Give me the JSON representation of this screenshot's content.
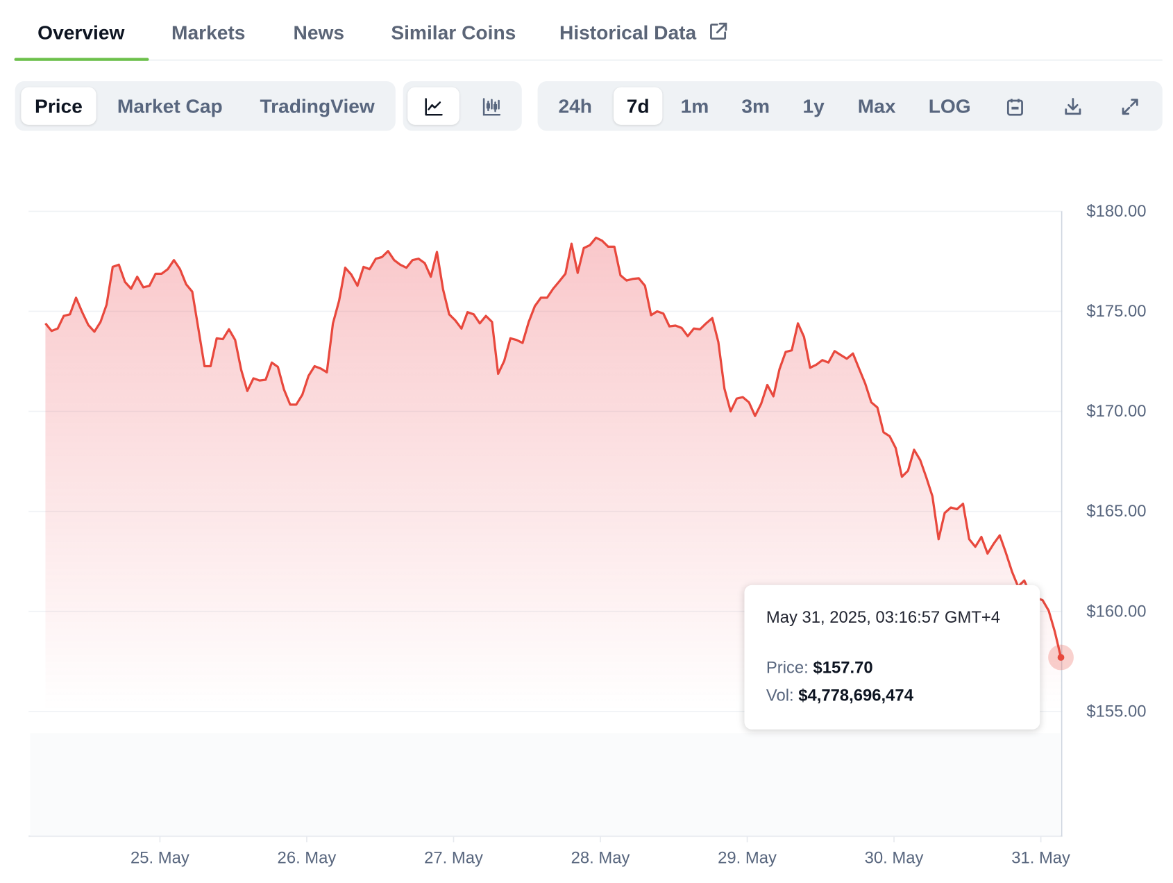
{
  "tabs": [
    {
      "label": "Overview",
      "active": true
    },
    {
      "label": "Markets"
    },
    {
      "label": "News"
    },
    {
      "label": "Similar Coins"
    },
    {
      "label": "Historical Data",
      "icon": "external-link-icon"
    }
  ],
  "toolbar": {
    "metrics": [
      {
        "label": "Price",
        "selected": true
      },
      {
        "label": "Market Cap"
      },
      {
        "label": "TradingView"
      }
    ],
    "chart_types": [
      {
        "icon": "line-chart-icon",
        "selected": true
      },
      {
        "icon": "candlestick-chart-icon"
      }
    ],
    "ranges": [
      {
        "label": "24h"
      },
      {
        "label": "7d",
        "selected": true
      },
      {
        "label": "1m"
      },
      {
        "label": "3m"
      },
      {
        "label": "1y"
      },
      {
        "label": "Max"
      },
      {
        "label": "LOG"
      }
    ],
    "actions": [
      {
        "icon": "calendar-icon"
      },
      {
        "icon": "download-icon"
      },
      {
        "icon": "expand-icon"
      }
    ]
  },
  "tooltip": {
    "datetime": "May 31, 2025, 03:16:57 GMT+4",
    "price_label": "Price:",
    "price": "$157.70",
    "vol_label": "Vol:",
    "vol": "$4,778,696,474"
  },
  "colors": {
    "line": "#e8483d",
    "accent": "#6cc04a",
    "grid": "#eff2f5"
  },
  "chart_data": {
    "type": "area",
    "ylim": [
      150.7,
      180
    ],
    "yticks": [
      "$180.00",
      "$175.00",
      "$170.00",
      "$165.00",
      "$160.00",
      "$155.00"
    ],
    "ytick_values": [
      180,
      175,
      170,
      165,
      160,
      155
    ],
    "xticks": [
      "25. May",
      "26. May",
      "27. May",
      "28. May",
      "29. May",
      "30. May",
      "31. May"
    ],
    "xtick_values": [
      "2025-05-25T00:00",
      "2025-05-26T00:00",
      "2025-05-27T00:00",
      "2025-05-28T00:00",
      "2025-05-29T00:00",
      "2025-05-30T00:00",
      "2025-05-31T00:00"
    ],
    "xlim": [
      "2025-05-24T04:00",
      "2025-05-31T03:17"
    ],
    "grid": true,
    "highlight": {
      "x": "2025-05-31T03:17",
      "y": 157.7
    },
    "x": [
      "2025-05-24T05:17",
      "2025-05-24T06:17",
      "2025-05-24T07:17",
      "2025-05-24T08:17",
      "2025-05-24T09:17",
      "2025-05-24T10:17",
      "2025-05-24T11:17",
      "2025-05-24T12:17",
      "2025-05-24T13:17",
      "2025-05-24T14:17",
      "2025-05-24T15:17",
      "2025-05-24T16:17",
      "2025-05-24T17:17",
      "2025-05-24T18:17",
      "2025-05-24T19:17",
      "2025-05-24T20:17",
      "2025-05-24T21:17",
      "2025-05-24T22:17",
      "2025-05-24T23:17",
      "2025-05-25T00:17",
      "2025-05-25T01:17",
      "2025-05-25T02:17",
      "2025-05-25T03:17",
      "2025-05-25T04:17",
      "2025-05-25T05:17",
      "2025-05-25T06:17",
      "2025-05-25T07:17",
      "2025-05-25T08:17",
      "2025-05-25T09:17",
      "2025-05-25T10:17",
      "2025-05-25T11:17",
      "2025-05-25T12:17",
      "2025-05-25T13:17",
      "2025-05-25T14:17",
      "2025-05-25T15:17",
      "2025-05-25T16:17",
      "2025-05-25T17:17",
      "2025-05-25T18:17",
      "2025-05-25T19:17",
      "2025-05-25T20:17",
      "2025-05-25T21:17",
      "2025-05-25T22:17",
      "2025-05-25T23:17",
      "2025-05-26T00:17",
      "2025-05-26T01:17",
      "2025-05-26T02:17",
      "2025-05-26T03:17",
      "2025-05-26T04:17",
      "2025-05-26T05:17",
      "2025-05-26T06:17",
      "2025-05-26T07:17",
      "2025-05-26T08:17",
      "2025-05-26T09:17",
      "2025-05-26T10:17",
      "2025-05-26T11:17",
      "2025-05-26T12:17",
      "2025-05-26T13:17",
      "2025-05-26T14:17",
      "2025-05-26T15:17",
      "2025-05-26T16:17",
      "2025-05-26T17:17",
      "2025-05-26T18:17",
      "2025-05-26T19:17",
      "2025-05-26T20:17",
      "2025-05-26T21:17",
      "2025-05-26T22:17",
      "2025-05-26T23:17",
      "2025-05-27T00:17",
      "2025-05-27T01:17",
      "2025-05-27T02:17",
      "2025-05-27T03:17",
      "2025-05-27T04:17",
      "2025-05-27T05:17",
      "2025-05-27T06:17",
      "2025-05-27T07:17",
      "2025-05-27T08:17",
      "2025-05-27T09:17",
      "2025-05-27T10:17",
      "2025-05-27T11:17",
      "2025-05-27T12:17",
      "2025-05-27T13:17",
      "2025-05-27T14:17",
      "2025-05-27T15:17",
      "2025-05-27T16:17",
      "2025-05-27T17:17",
      "2025-05-27T18:17",
      "2025-05-27T19:17",
      "2025-05-27T20:17",
      "2025-05-27T21:17",
      "2025-05-27T22:17",
      "2025-05-27T23:17",
      "2025-05-28T00:17",
      "2025-05-28T01:17",
      "2025-05-28T02:17",
      "2025-05-28T03:17",
      "2025-05-28T04:17",
      "2025-05-28T05:17",
      "2025-05-28T06:17",
      "2025-05-28T07:17",
      "2025-05-28T08:17",
      "2025-05-28T09:17",
      "2025-05-28T10:17",
      "2025-05-28T11:17",
      "2025-05-28T12:17",
      "2025-05-28T13:17",
      "2025-05-28T14:17",
      "2025-05-28T15:17",
      "2025-05-28T16:17",
      "2025-05-28T17:17",
      "2025-05-28T18:17",
      "2025-05-28T19:17",
      "2025-05-28T20:17",
      "2025-05-28T21:17",
      "2025-05-28T22:17",
      "2025-05-28T23:17",
      "2025-05-29T00:17",
      "2025-05-29T01:17",
      "2025-05-29T02:17",
      "2025-05-29T03:17",
      "2025-05-29T04:17",
      "2025-05-29T05:17",
      "2025-05-29T06:17",
      "2025-05-29T07:17",
      "2025-05-29T08:17",
      "2025-05-29T09:17",
      "2025-05-29T10:17",
      "2025-05-29T11:17",
      "2025-05-29T12:17",
      "2025-05-29T13:17",
      "2025-05-29T14:17",
      "2025-05-29T15:17",
      "2025-05-29T16:17",
      "2025-05-29T17:17",
      "2025-05-29T18:17",
      "2025-05-29T19:17",
      "2025-05-29T20:17",
      "2025-05-29T21:17",
      "2025-05-29T22:17",
      "2025-05-29T23:17",
      "2025-05-30T00:17",
      "2025-05-30T01:17",
      "2025-05-30T02:17",
      "2025-05-30T03:17",
      "2025-05-30T04:17",
      "2025-05-30T05:17",
      "2025-05-30T06:17",
      "2025-05-30T07:17",
      "2025-05-30T08:17",
      "2025-05-30T09:17",
      "2025-05-30T10:17",
      "2025-05-30T11:17",
      "2025-05-30T12:17",
      "2025-05-30T13:17",
      "2025-05-30T14:17",
      "2025-05-30T15:17",
      "2025-05-30T16:17",
      "2025-05-30T17:17",
      "2025-05-30T18:17",
      "2025-05-30T19:17",
      "2025-05-30T20:17",
      "2025-05-30T21:17",
      "2025-05-30T22:17",
      "2025-05-30T23:17",
      "2025-05-31T00:17",
      "2025-05-31T01:17",
      "2025-05-31T02:17",
      "2025-05-31T03:17"
    ],
    "y": [
      174.4,
      174.02,
      174.14,
      174.77,
      174.85,
      175.68,
      174.96,
      174.32,
      173.98,
      174.47,
      175.34,
      177.22,
      177.33,
      176.47,
      176.13,
      176.73,
      176.2,
      176.28,
      176.88,
      176.88,
      177.11,
      177.56,
      177.11,
      176.35,
      175.98,
      174.14,
      172.26,
      172.26,
      173.65,
      173.61,
      174.1,
      173.57,
      172.07,
      171.02,
      171.65,
      171.54,
      171.58,
      172.44,
      172.22,
      171.09,
      170.34,
      170.34,
      170.83,
      171.77,
      172.26,
      172.14,
      171.95,
      174.4,
      175.53,
      177.18,
      176.84,
      176.28,
      177.22,
      177.11,
      177.63,
      177.71,
      178.01,
      177.56,
      177.33,
      177.18,
      177.56,
      177.63,
      177.41,
      176.73,
      177.97,
      176.09,
      174.85,
      174.55,
      174.14,
      174.96,
      174.85,
      174.4,
      174.77,
      174.47,
      171.88,
      172.52,
      173.65,
      173.57,
      173.42,
      174.47,
      175.26,
      175.68,
      175.68,
      176.13,
      176.5,
      176.88,
      178.38,
      176.92,
      178.16,
      178.31,
      178.68,
      178.53,
      178.23,
      178.23,
      176.8,
      176.54,
      176.62,
      176.65,
      176.28,
      174.81,
      175.0,
      174.89,
      174.25,
      174.29,
      174.17,
      173.76,
      174.14,
      174.1,
      174.4,
      174.66,
      173.46,
      171.13,
      170.0,
      170.64,
      170.71,
      170.45,
      169.77,
      170.38,
      171.32,
      170.75,
      172.11,
      172.97,
      173.05,
      174.4,
      173.72,
      172.18,
      172.33,
      172.56,
      172.44,
      173.01,
      172.82,
      172.63,
      172.89,
      172.14,
      171.39,
      170.45,
      170.19,
      168.95,
      168.76,
      168.16,
      166.73,
      167.03,
      168.08,
      167.56,
      166.69,
      165.75,
      163.61,
      164.92,
      165.19,
      165.11,
      165.38,
      163.61,
      163.23,
      163.72,
      162.89,
      163.38,
      163.8,
      162.93,
      161.99,
      161.24,
      161.54,
      160.86,
      160.68,
      160.56,
      160.04,
      158.98,
      157.7
    ]
  }
}
